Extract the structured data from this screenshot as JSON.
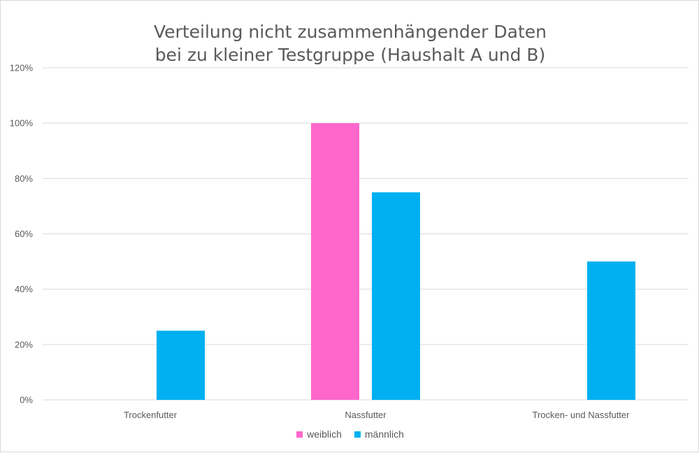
{
  "chart_data": {
    "type": "bar",
    "title": [
      "Verteilung nicht zusammenhängender Daten",
      "bei zu kleiner Testgruppe (Haushalt A und B)"
    ],
    "categories": [
      "Trockenfutter",
      "Nassfutter",
      "Trocken- und Nassfutter"
    ],
    "series": [
      {
        "name": "weiblich",
        "values": [
          0,
          100,
          0
        ],
        "color": "#ff66cc"
      },
      {
        "name": "männlich",
        "values": [
          25,
          75,
          50
        ],
        "color": "#00b0f0"
      }
    ],
    "ylim": [
      0,
      120
    ],
    "yticks": [
      "0%",
      "20%",
      "40%",
      "60%",
      "80%",
      "100%",
      "120%"
    ],
    "grid": true,
    "legend_position": "bottom"
  }
}
